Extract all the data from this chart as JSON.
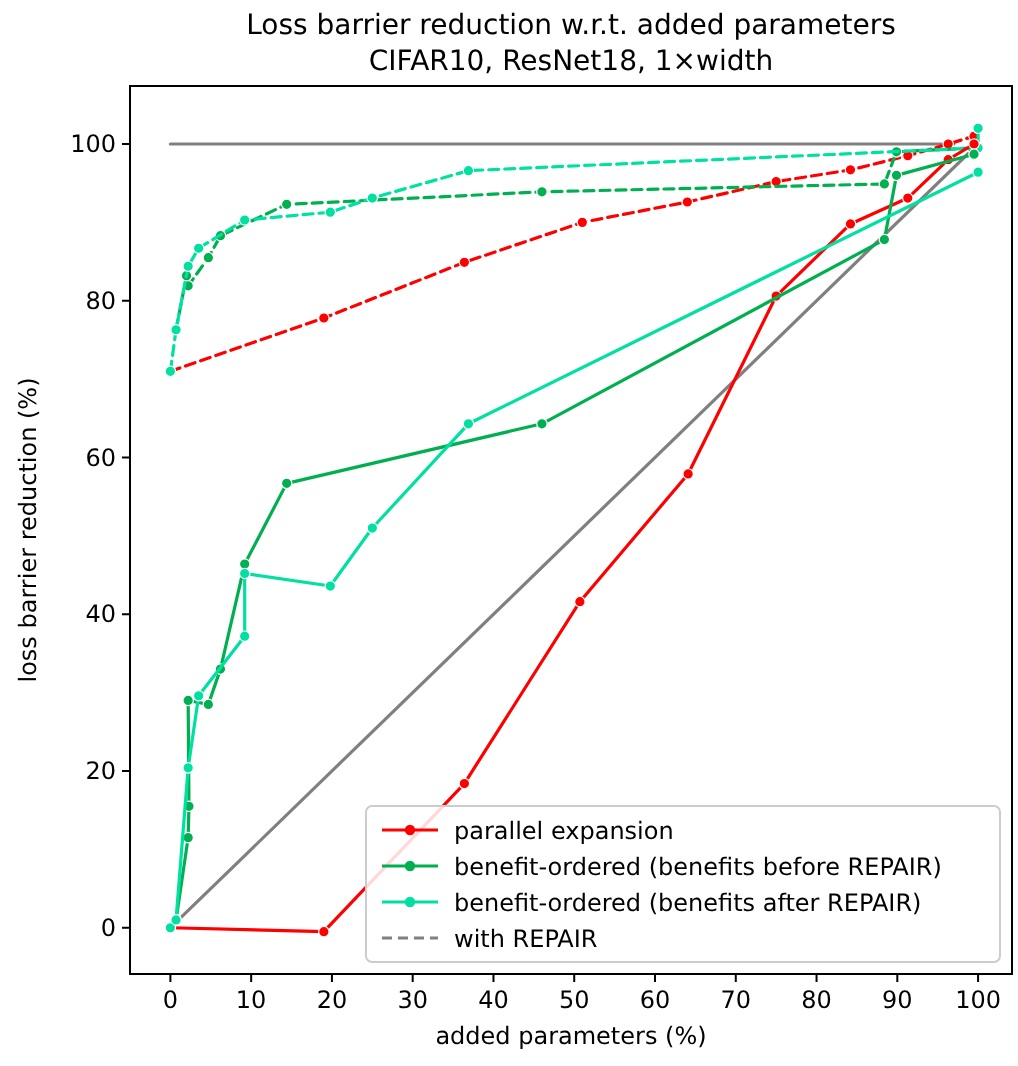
{
  "chart_data": {
    "type": "line",
    "title": "Loss barrier reduction w.r.t. added parameters",
    "subtitle": "CIFAR10, ResNet18, 1×width",
    "xlabel": "added parameters (%)",
    "ylabel": "loss barrier reduction (%)",
    "xlim": [
      -5,
      104.2
    ],
    "ylim": [
      -5.9,
      107.4
    ],
    "xticks": [
      0,
      10,
      20,
      30,
      40,
      50,
      60,
      70,
      80,
      90,
      100
    ],
    "yticks": [
      0,
      20,
      40,
      60,
      80,
      100
    ],
    "grid": false,
    "legend": "bottom right",
    "marker": "circle",
    "line_style": "solid",
    "series": [
      {
        "color": "#808080",
        "marker": "none",
        "x": [
          0,
          97
        ],
        "values": [
          100,
          100
        ]
      },
      {
        "color": "#808080",
        "marker": "none",
        "x": [
          1,
          100
        ],
        "values": [
          1,
          100
        ]
      },
      {
        "color": "#ff0000",
        "line_style": "dashed",
        "x": [
          0,
          19,
          36.4,
          51,
          64,
          75,
          84.2,
          91.3,
          96.3,
          99.5
        ],
        "values": [
          71,
          77.8,
          84.9,
          90,
          92.6,
          95.2,
          96.7,
          98.5,
          100,
          101
        ]
      },
      {
        "color": "#00b050",
        "line_style": "dashed",
        "x": [
          0.7,
          2,
          2.2,
          4.7,
          6.2,
          14.4,
          46,
          88.4,
          89.9,
          99.3
        ],
        "values": [
          76.3,
          83.2,
          81.9,
          85.5,
          88.3,
          92.3,
          93.9,
          94.9,
          99,
          99.5
        ]
      },
      {
        "color": "#00e0a0",
        "line_style": "dashed",
        "x": [
          0,
          0.7,
          2.2,
          3.5,
          9.2,
          19.8,
          25,
          36.9,
          100,
          100
        ],
        "values": [
          71,
          76.3,
          84.4,
          86.7,
          90.3,
          91.3,
          93.1,
          96.6,
          99.5,
          102
        ]
      },
      {
        "name": "parallel expansion",
        "color": "#ff0000",
        "x": [
          0,
          19,
          36.4,
          50.7,
          64.1,
          75,
          84.2,
          91.3,
          96.3,
          99.5
        ],
        "values": [
          0,
          -0.5,
          18.4,
          41.6,
          57.9,
          80.6,
          89.8,
          93.1,
          98,
          100
        ]
      },
      {
        "name": "benefit-ordered (benefits before REPAIR)",
        "color": "#00b050",
        "x": [
          0.7,
          2.2,
          2.3,
          2.2,
          4.7,
          6.2,
          9.2,
          14.4,
          46,
          88.4,
          89.9,
          99.5
        ],
        "values": [
          1,
          11.5,
          15.5,
          29,
          28.5,
          33,
          46.4,
          56.7,
          64.3,
          87.8,
          96,
          98.7
        ]
      },
      {
        "name": "benefit-ordered (benefits after REPAIR)",
        "color": "#00e0a0",
        "x": [
          0,
          0.7,
          2.2,
          3.5,
          9.2,
          9.2,
          19.8,
          25,
          36.9,
          100
        ],
        "values": [
          0,
          1,
          20.4,
          29.6,
          37.2,
          45.2,
          43.6,
          51,
          64.3,
          96.4
        ]
      },
      {
        "name": "with REPAIR",
        "color": "#808080",
        "line_style": "dashed",
        "marker": "none"
      }
    ]
  }
}
